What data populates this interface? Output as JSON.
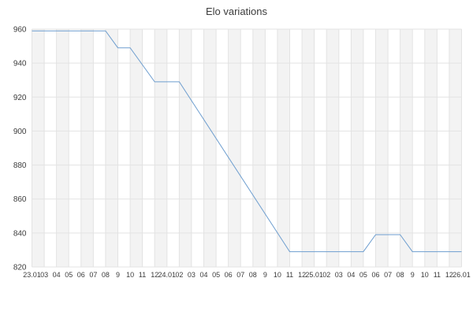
{
  "title": "Elo variations",
  "colors": {
    "line": "#6e9ecf",
    "grid": "#e3e3e3",
    "band": "#f3f3f3",
    "axis_text": "#3c3c3c",
    "title_text": "#3c3c3c"
  },
  "chart_data": {
    "type": "line",
    "title": "Elo variations",
    "xlabel": "",
    "ylabel": "",
    "grid": true,
    "legend": "none",
    "background_banding": "alternating vertical bands per x interval",
    "ylim": [
      820,
      960
    ],
    "y_ticks": [
      960,
      940,
      920,
      900,
      880,
      860,
      840,
      820
    ],
    "x_tick_labels": [
      "23.01",
      "03",
      "04",
      "05",
      "06",
      "07",
      "08",
      "9",
      "10",
      "11",
      "12",
      "24.01",
      "02",
      "03",
      "04",
      "05",
      "06",
      "07",
      "08",
      "9",
      "10",
      "11",
      "12",
      "25.01",
      "02",
      "03",
      "04",
      "05",
      "06",
      "07",
      "08",
      "9",
      "10",
      "11",
      "12",
      "26.01"
    ],
    "series": [
      {
        "name": "Elo",
        "color": "#6e9ecf",
        "points": [
          [
            0,
            959
          ],
          [
            6,
            959
          ],
          [
            7,
            949
          ],
          [
            8,
            949
          ],
          [
            10,
            929
          ],
          [
            12,
            929
          ],
          [
            21,
            829
          ],
          [
            27,
            829
          ],
          [
            28,
            839
          ],
          [
            30,
            839
          ],
          [
            31,
            829
          ],
          [
            35,
            829
          ]
        ]
      }
    ]
  }
}
